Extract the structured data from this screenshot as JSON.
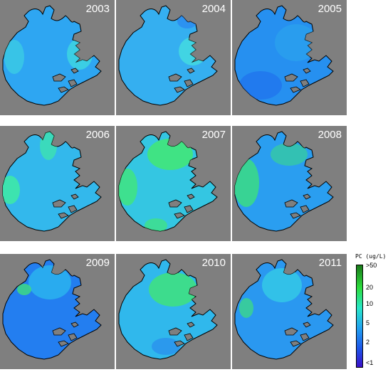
{
  "panels": [
    {
      "year": "2003",
      "mean_pc_class": "low-moderate",
      "fill": "#2ea6f2",
      "patch": "#3fd8e0"
    },
    {
      "year": "2004",
      "mean_pc_class": "low-moderate",
      "fill": "#35aff0",
      "patch": "#45dde0"
    },
    {
      "year": "2005",
      "mean_pc_class": "low",
      "fill": "#2690f0",
      "patch": "#2aa0ee"
    },
    {
      "year": "2006",
      "mean_pc_class": "moderate",
      "fill": "#33b8ec",
      "patch": "#3ee8a8"
    },
    {
      "year": "2007",
      "mean_pc_class": "high",
      "fill": "#34c6e2",
      "patch": "#41e67a"
    },
    {
      "year": "2008",
      "mean_pc_class": "moderate",
      "fill": "#2a9ef0",
      "patch": "#3ad88a"
    },
    {
      "year": "2009",
      "mean_pc_class": "low",
      "fill": "#237ef0",
      "patch": "#2ab0ee"
    },
    {
      "year": "2010",
      "mean_pc_class": "moderate-high",
      "fill": "#30b8ec",
      "patch": "#40e27c"
    },
    {
      "year": "2011",
      "mean_pc_class": "low-moderate",
      "fill": "#2a98f0",
      "patch": "#34c8e6"
    }
  ],
  "legend": {
    "title": "PC (ug/L)",
    "ticks": [
      ">50",
      "20",
      "10",
      "5",
      "2",
      "<1"
    ],
    "colors": [
      "#1a7a1a",
      "#2cdc3c",
      "#28e6c8",
      "#21a0f0",
      "#1d54e8",
      "#3a10c8"
    ]
  },
  "background_color": "#7f7f7f"
}
